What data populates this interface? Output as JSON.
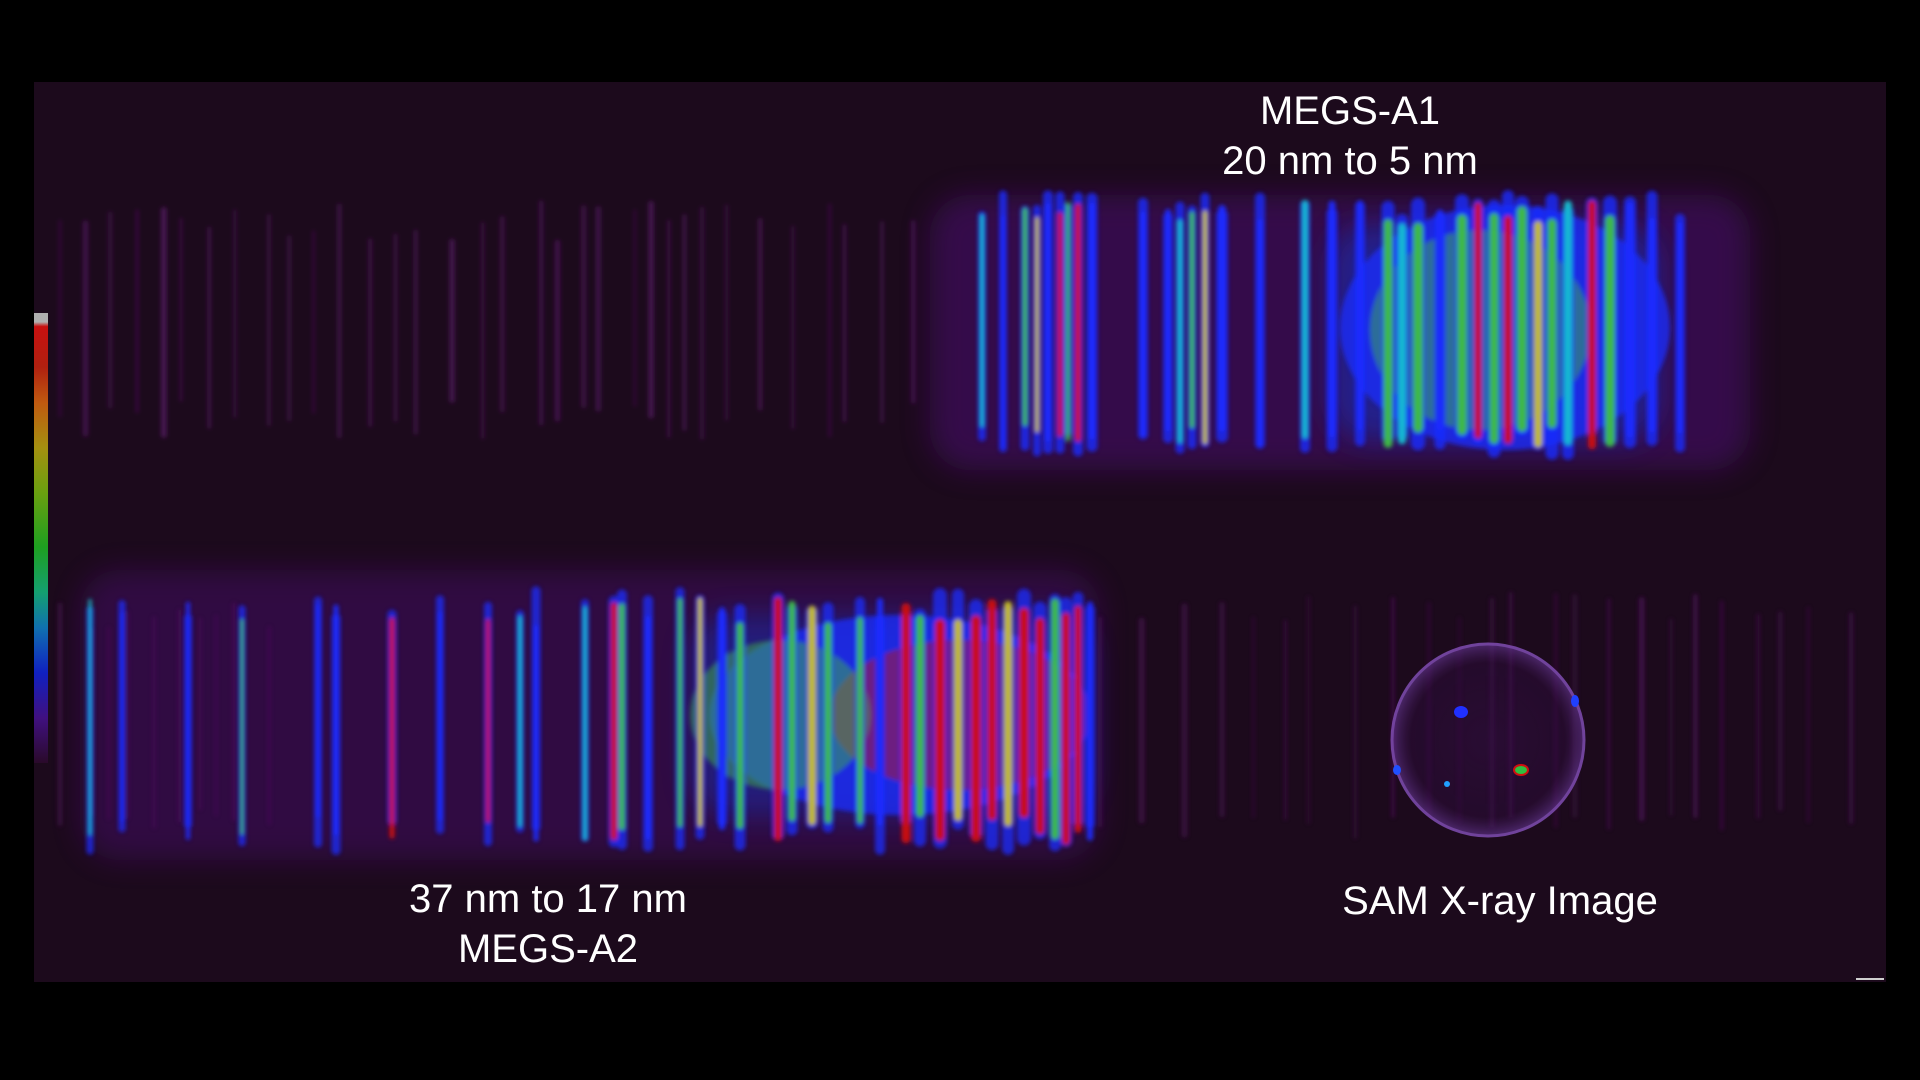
{
  "image": {
    "colors": {
      "background": "#000000",
      "detector_field": "#1c0a1c",
      "faint": "#5a1a6a",
      "blue": "#1a2cff",
      "cyan": "#18c0d0",
      "green": "#40c040",
      "yellow": "#c8c020",
      "red": "#d01010"
    }
  },
  "labels": {
    "megs_a1": {
      "line1": "MEGS-A1",
      "line2": "20 nm to 5 nm"
    },
    "megs_a2": {
      "line1": "37 nm to 17 nm",
      "line2": "MEGS-A2"
    },
    "sam": {
      "text": "SAM X-ray Image"
    }
  }
}
